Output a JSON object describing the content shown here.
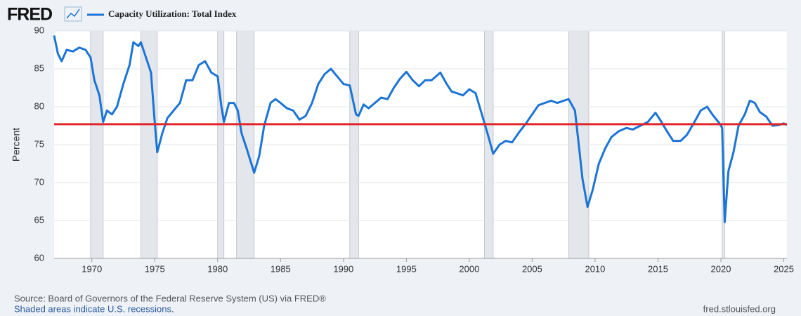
{
  "header": {
    "logo": "FRED"
  },
  "chart_data": {
    "type": "line",
    "legend_label": "Capacity Utilization: Total Index",
    "ylabel": "Percent",
    "x": [
      1967.0,
      1967.3,
      1967.6,
      1968.0,
      1968.5,
      1969.0,
      1969.5,
      1969.9,
      1970.2,
      1970.6,
      1970.9,
      1971.2,
      1971.6,
      1972.0,
      1972.5,
      1973.0,
      1973.3,
      1973.7,
      1973.9,
      1974.3,
      1974.7,
      1975.0,
      1975.2,
      1975.6,
      1976.0,
      1976.5,
      1977.0,
      1977.5,
      1978.0,
      1978.5,
      1979.0,
      1979.5,
      1980.0,
      1980.3,
      1980.5,
      1980.9,
      1981.3,
      1981.6,
      1981.9,
      1982.3,
      1982.9,
      1983.3,
      1983.7,
      1984.2,
      1984.6,
      1985.0,
      1985.5,
      1986.0,
      1986.5,
      1987.0,
      1987.5,
      1988.0,
      1988.5,
      1989.0,
      1989.5,
      1990.0,
      1990.5,
      1991.0,
      1991.2,
      1991.6,
      1992.0,
      1992.5,
      1993.0,
      1993.5,
      1994.0,
      1994.5,
      1995.0,
      1995.5,
      1996.0,
      1996.5,
      1997.0,
      1997.7,
      1998.2,
      1998.6,
      1999.0,
      1999.5,
      2000.0,
      2000.5,
      2001.0,
      2001.5,
      2001.9,
      2002.4,
      2002.9,
      2003.4,
      2003.9,
      2004.5,
      2005.0,
      2005.5,
      2006.0,
      2006.5,
      2007.0,
      2007.5,
      2007.9,
      2008.4,
      2008.7,
      2009.0,
      2009.4,
      2009.8,
      2010.3,
      2010.8,
      2011.3,
      2011.9,
      2012.5,
      2013.0,
      2013.6,
      2014.2,
      2014.8,
      2015.2,
      2015.7,
      2016.2,
      2016.8,
      2017.3,
      2017.9,
      2018.4,
      2018.9,
      2019.4,
      2019.9,
      2020.1,
      2020.3,
      2020.6,
      2021.0,
      2021.4,
      2021.9,
      2022.3,
      2022.7,
      2023.1,
      2023.6,
      2024.1,
      2024.6,
      2025.0,
      2025.25
    ],
    "series": [
      {
        "name": "Capacity Utilization: Total Index",
        "color": "#1b74d6",
        "values": [
          89.4,
          87,
          86,
          87.5,
          87.3,
          87.8,
          87.5,
          86.5,
          83.5,
          81.5,
          78,
          79.5,
          79,
          80,
          83,
          85.5,
          88.5,
          88,
          88.5,
          86.5,
          84.5,
          78,
          74,
          76.5,
          78.5,
          79.5,
          80.5,
          83.5,
          83.5,
          85.5,
          86,
          84.5,
          84,
          80,
          78,
          80.5,
          80.5,
          79.5,
          76.5,
          74.5,
          71.3,
          73.5,
          77.5,
          80.5,
          81,
          80.5,
          79.8,
          79.5,
          78.3,
          78.8,
          80.5,
          83,
          84.3,
          85,
          84,
          83,
          82.8,
          79,
          78.8,
          80.3,
          79.8,
          80.5,
          81.2,
          81,
          82.5,
          83.7,
          84.6,
          83.5,
          82.7,
          83.5,
          83.5,
          84.5,
          83,
          82,
          81.8,
          81.5,
          82.3,
          81.8,
          79,
          76.2,
          73.8,
          75,
          75.5,
          75.3,
          76.5,
          77.8,
          79,
          80.2,
          80.5,
          80.8,
          80.5,
          80.8,
          81,
          79.5,
          75,
          70.5,
          66.8,
          69,
          72.5,
          74.5,
          76,
          76.8,
          77.2,
          77,
          77.5,
          78,
          79.2,
          78.2,
          76.8,
          75.5,
          75.5,
          76.3,
          78,
          79.5,
          80,
          78.8,
          77.8,
          77.2,
          64.8,
          71.5,
          74,
          77.5,
          79,
          80.8,
          80.5,
          79.3,
          78.7,
          77.5,
          77.6,
          77.8,
          77.6
        ]
      }
    ],
    "reference_line": {
      "value": 77.7,
      "color": "#e0262b"
    },
    "recessions": [
      [
        1969.9,
        1970.9
      ],
      [
        1973.9,
        1975.2
      ],
      [
        1980.0,
        1980.5
      ],
      [
        1981.5,
        1982.9
      ],
      [
        1990.5,
        1991.2
      ],
      [
        2001.2,
        2001.9
      ],
      [
        2007.9,
        2009.5
      ],
      [
        2020.1,
        2020.3
      ]
    ],
    "recession_color": "#e3e7ec",
    "xlim": [
      1967,
      2025.25
    ],
    "xticks": [
      1970,
      1975,
      1980,
      1985,
      1990,
      1995,
      2000,
      2005,
      2010,
      2015,
      2020,
      2025
    ],
    "ylim": [
      60,
      90
    ],
    "yticks": [
      60,
      65,
      70,
      75,
      80,
      85,
      90
    ],
    "grid": true
  },
  "footer": {
    "source": "Source: Board of Governors of the Federal Reserve System (US) via FRED®",
    "note": "Shaded areas indicate U.S. recessions.",
    "url": "fred.stlouisfed.org"
  }
}
